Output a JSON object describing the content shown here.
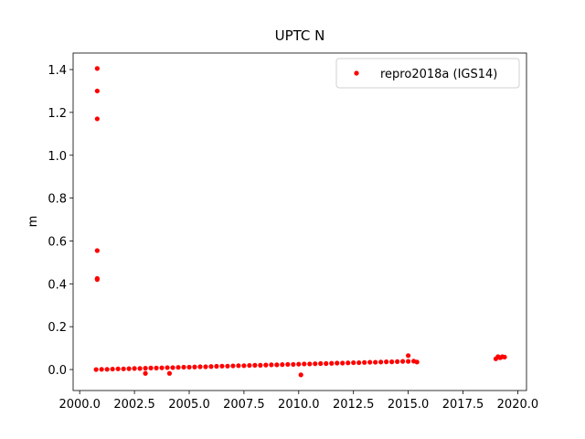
{
  "chart_data": {
    "type": "scatter",
    "title": "UPTC N",
    "y_label": "m",
    "legend": "upper right",
    "grid": false,
    "xlim": [
      1999.7,
      2020.4
    ],
    "ylim": [
      -0.098,
      1.477
    ],
    "xticks": [
      {
        "value": 2000,
        "label": "2000.0"
      },
      {
        "value": 2002.5,
        "label": "2002.5"
      },
      {
        "value": 2005,
        "label": "2005.0"
      },
      {
        "value": 2007.5,
        "label": "2007.5"
      },
      {
        "value": 2010,
        "label": "2010.0"
      },
      {
        "value": 2012.5,
        "label": "2012.5"
      },
      {
        "value": 2015,
        "label": "2015.0"
      },
      {
        "value": 2017.5,
        "label": "2017.5"
      },
      {
        "value": 2020,
        "label": "2020.0"
      }
    ],
    "yticks": [
      {
        "value": 0,
        "label": "0.0"
      },
      {
        "value": 0.2,
        "label": "0.2"
      },
      {
        "value": 0.4,
        "label": "0.4"
      },
      {
        "value": 0.6,
        "label": "0.6"
      },
      {
        "value": 0.8,
        "label": "0.8"
      },
      {
        "value": 1,
        "label": "1.0"
      },
      {
        "value": 1.2,
        "label": "1.2"
      },
      {
        "value": 1.4,
        "label": "1.4"
      }
    ],
    "series": [
      {
        "name": "repro2018a (IGS14)",
        "color": "#ff0000",
        "x": [
          2000.75,
          2001.0,
          2001.25,
          2001.5,
          2001.75,
          2002.0,
          2002.25,
          2002.5,
          2002.75,
          2003.0,
          2003.25,
          2003.5,
          2003.75,
          2004.0,
          2004.25,
          2004.5,
          2004.75,
          2005.0,
          2005.25,
          2005.5,
          2005.75,
          2006.0,
          2006.25,
          2006.5,
          2006.75,
          2007.0,
          2007.25,
          2007.5,
          2007.75,
          2008.0,
          2008.25,
          2008.5,
          2008.75,
          2009.0,
          2009.25,
          2009.5,
          2009.75,
          2010.0,
          2010.25,
          2010.5,
          2010.75,
          2011.0,
          2011.25,
          2011.5,
          2011.75,
          2012.0,
          2012.25,
          2012.5,
          2012.75,
          2013.0,
          2013.25,
          2013.5,
          2013.75,
          2014.0,
          2014.25,
          2014.5,
          2014.75,
          2015.0,
          2015.25,
          2015.4,
          2015.0,
          2010.1,
          2003.0,
          2004.1,
          2019.0,
          2019.1,
          2019.2,
          2019.3,
          2019.4,
          2000.8,
          2000.8,
          2000.8,
          2000.8,
          2000.8,
          2000.8
        ],
        "values": [
          0.0,
          0.001,
          0.001,
          0.002,
          0.003,
          0.003,
          0.004,
          0.005,
          0.005,
          0.006,
          0.007,
          0.007,
          0.008,
          0.009,
          0.009,
          0.01,
          0.011,
          0.011,
          0.012,
          0.013,
          0.013,
          0.014,
          0.015,
          0.016,
          0.016,
          0.017,
          0.018,
          0.018,
          0.019,
          0.02,
          0.02,
          0.021,
          0.022,
          0.022,
          0.023,
          0.024,
          0.024,
          0.025,
          0.026,
          0.026,
          0.027,
          0.028,
          0.028,
          0.029,
          0.03,
          0.03,
          0.031,
          0.032,
          0.032,
          0.033,
          0.034,
          0.034,
          0.035,
          0.036,
          0.036,
          0.037,
          0.038,
          0.038,
          0.039,
          0.035,
          0.065,
          -0.025,
          -0.018,
          -0.018,
          0.05,
          0.06,
          0.055,
          0.06,
          0.058,
          1.405,
          1.3,
          1.17,
          0.555,
          0.425,
          0.42
        ]
      }
    ]
  }
}
